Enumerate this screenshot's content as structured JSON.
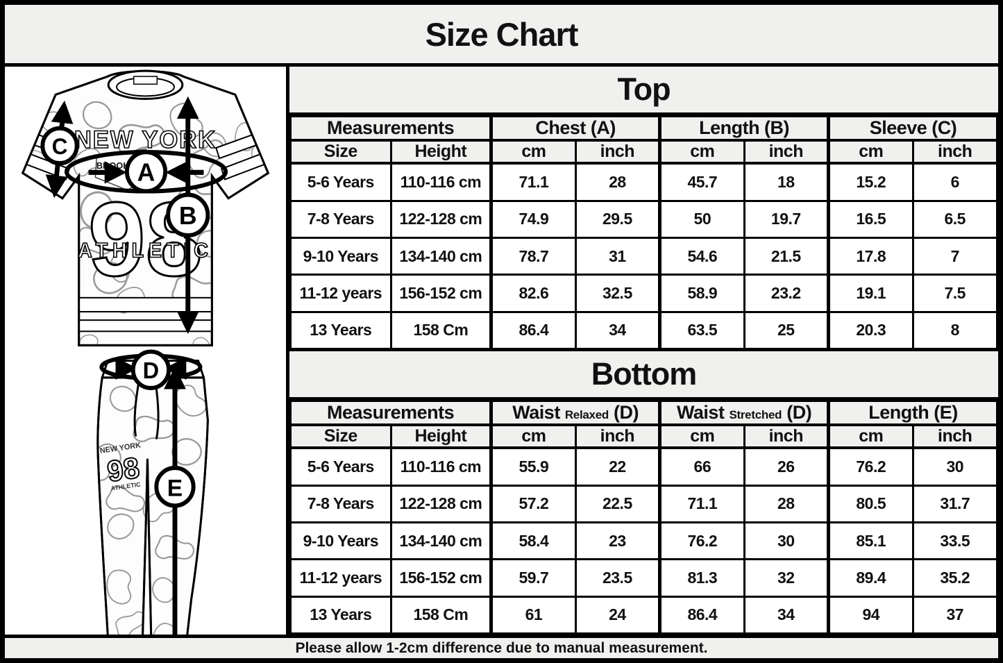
{
  "page": {
    "title": "Size Chart",
    "footer_note": "Please allow 1-2cm difference due to manual measurement."
  },
  "colors": {
    "header_bg": "#f0f0ee",
    "cell_bg": "#ffffff",
    "border": "#000000"
  },
  "illustration": {
    "shirt": {
      "brand_line": "NEW YORK",
      "sub_line": "BROOKLYN",
      "number": "98",
      "bottom_line": "ATHLETIC"
    },
    "pants": {
      "brand_line": "NEW YORK",
      "number": "98",
      "bottom_line": "ATHLETIC"
    },
    "labels": {
      "chest": "A",
      "top_length": "B",
      "sleeve": "C",
      "waist": "D",
      "bottom_length": "E"
    }
  },
  "top_table": {
    "title": "Top",
    "measurements_label": "Measurements",
    "groups": [
      {
        "label": "Chest (A)"
      },
      {
        "label": "Length (B)"
      },
      {
        "label": "Sleeve (C)"
      }
    ],
    "sub_headers": [
      "Size",
      "Height",
      "cm",
      "inch",
      "cm",
      "inch",
      "cm",
      "inch"
    ],
    "rows": [
      [
        "5-6 Years",
        "110-116 cm",
        "71.1",
        "28",
        "45.7",
        "18",
        "15.2",
        "6"
      ],
      [
        "7-8 Years",
        "122-128 cm",
        "74.9",
        "29.5",
        "50",
        "19.7",
        "16.5",
        "6.5"
      ],
      [
        "9-10 Years",
        "134-140 cm",
        "78.7",
        "31",
        "54.6",
        "21.5",
        "17.8",
        "7"
      ],
      [
        "11-12 years",
        "156-152 cm",
        "82.6",
        "32.5",
        "58.9",
        "23.2",
        "19.1",
        "7.5"
      ],
      [
        "13 Years",
        "158 Cm",
        "86.4",
        "34",
        "63.5",
        "25",
        "20.3",
        "8"
      ]
    ]
  },
  "bottom_table": {
    "title": "Bottom",
    "measurements_label": "Measurements",
    "groups": [
      {
        "main": "Waist",
        "sub": "Relaxed",
        "suffix": "(D)"
      },
      {
        "main": "Waist",
        "sub": "Stretched",
        "suffix": "(D)"
      },
      {
        "label": "Length (E)"
      }
    ],
    "sub_headers": [
      "Size",
      "Height",
      "cm",
      "inch",
      "cm",
      "inch",
      "cm",
      "inch"
    ],
    "rows": [
      [
        "5-6 Years",
        "110-116 cm",
        "55.9",
        "22",
        "66",
        "26",
        "76.2",
        "30"
      ],
      [
        "7-8 Years",
        "122-128 cm",
        "57.2",
        "22.5",
        "71.1",
        "28",
        "80.5",
        "31.7"
      ],
      [
        "9-10 Years",
        "134-140 cm",
        "58.4",
        "23",
        "76.2",
        "30",
        "85.1",
        "33.5"
      ],
      [
        "11-12 years",
        "156-152 cm",
        "59.7",
        "23.5",
        "81.3",
        "32",
        "89.4",
        "35.2"
      ],
      [
        "13 Years",
        "158 Cm",
        "61",
        "24",
        "86.4",
        "34",
        "94",
        "37"
      ]
    ]
  }
}
